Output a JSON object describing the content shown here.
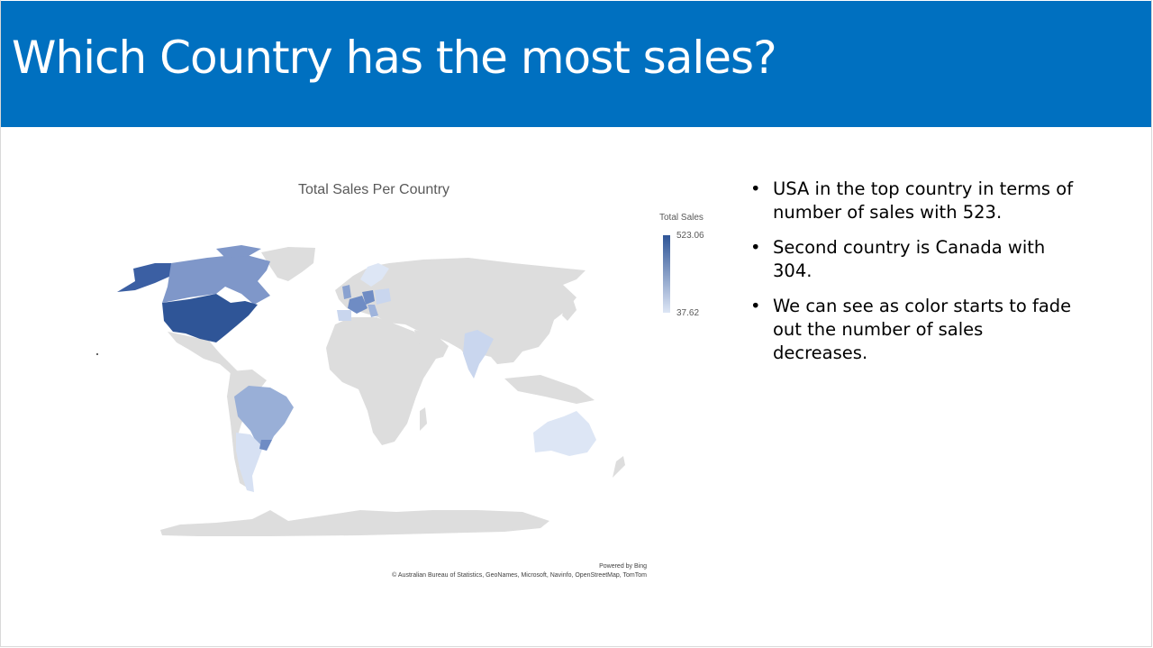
{
  "slide": {
    "title": "Which Country has the most sales?"
  },
  "map": {
    "title": "Total Sales Per Country",
    "legend": {
      "title": "Total Sales",
      "max_label": "523.06",
      "min_label": "37.62"
    },
    "credits": {
      "powered_by": "Powered by Bing",
      "attribution": "© Australian Bureau of Statistics, GeoNames, Microsoft, Navinfo, OpenStreetMap, TomTom"
    },
    "colors": {
      "high": "#2f5597",
      "low": "#dde6f5",
      "no_data": "#dddddd"
    }
  },
  "bullets": [
    {
      "text": "USA in the top country in terms of number of sales with 523."
    },
    {
      "text": "Second country is Canada with 304."
    },
    {
      "text": "We can see as color starts to fade out the number of sales decreases."
    }
  ]
}
